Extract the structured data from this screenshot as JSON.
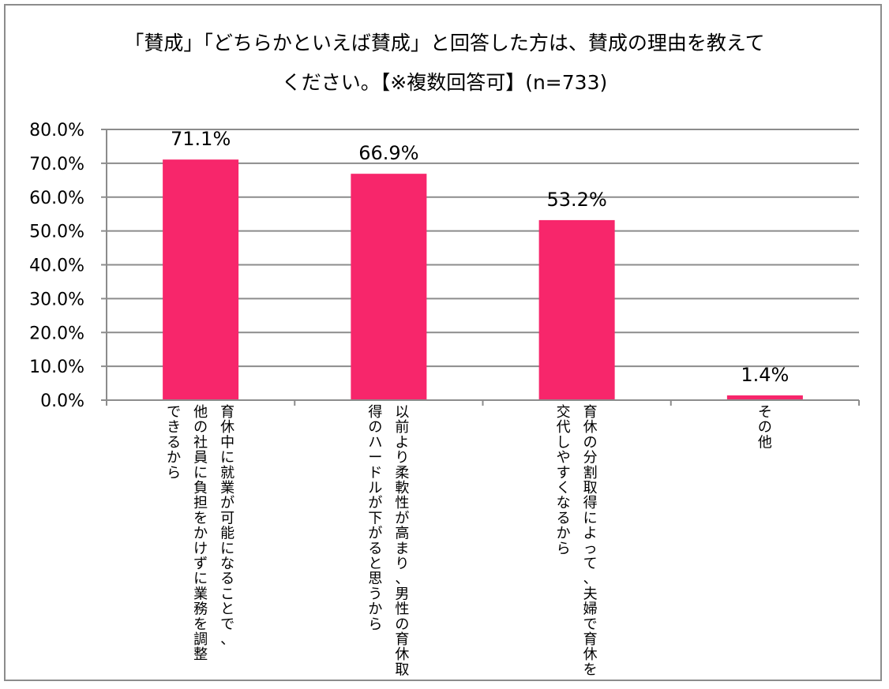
{
  "chart_data": {
    "type": "bar",
    "title_lines": [
      "「賛成」「どちらかといえば賛成」と回答した方は、賛成の理由を教えて",
      "ください。【※複数回答可】(n=733)"
    ],
    "categories": [
      {
        "label": "育休中に就業が可能になることで、他の社員に負担をかけずに業務を調整できるから",
        "columns": [
          "育休中に就業が可能になることで、",
          "他の社員に負担をかけずに業務を調整",
          "できるから"
        ]
      },
      {
        "label": "以前より柔軟性が高まり、男性の育休取得のハードルが下がると思うから",
        "columns": [
          "以前より柔軟性が高まり、男性の育休取",
          "得のハードルが下がると思うから"
        ]
      },
      {
        "label": "育休の分割取得によって、夫婦で育休を交代しやすくなるから",
        "columns": [
          "育休の分割取得によって、夫婦で育休を",
          "交代しやすくなるから"
        ]
      },
      {
        "label": "その他",
        "columns": [
          "その他"
        ]
      }
    ],
    "values": [
      71.1,
      66.9,
      53.2,
      1.4
    ],
    "value_labels": [
      "71.1%",
      "66.9%",
      "53.2%",
      "1.4%"
    ],
    "yticks": [
      "0.0%",
      "10.0%",
      "20.0%",
      "30.0%",
      "40.0%",
      "50.0%",
      "60.0%",
      "70.0%",
      "80.0%"
    ],
    "ylim": [
      0,
      80
    ],
    "grid": true,
    "colors": {
      "bar": "#f7266b",
      "grid": "#8c8c8c",
      "axis": "#8c8c8c",
      "frame": "#8c8c8c"
    }
  }
}
